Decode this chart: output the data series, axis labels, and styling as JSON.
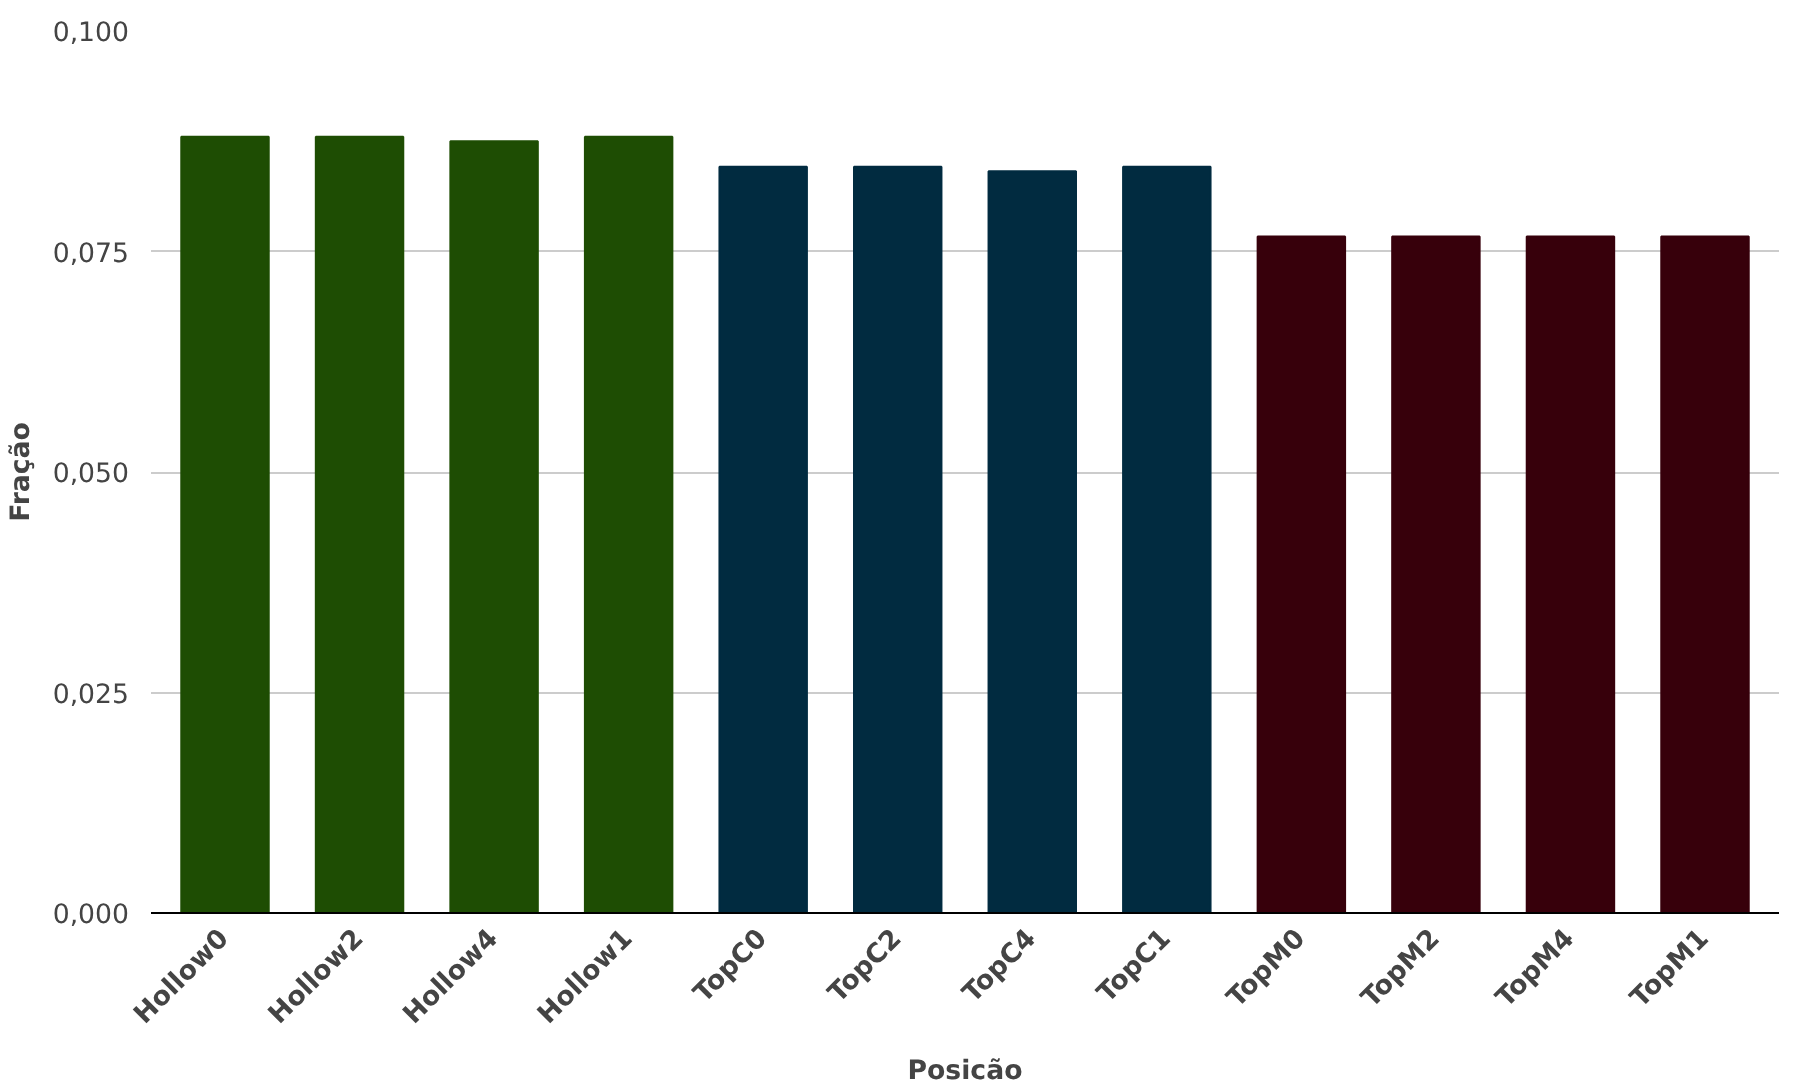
{
  "chart_data": {
    "type": "bar",
    "xlabel": "Posicão",
    "ylabel": "Fração",
    "categories": [
      "Hollow0",
      "Hollow2",
      "Hollow4",
      "Hollow1",
      "TopC0",
      "TopC2",
      "TopC4",
      "TopC1",
      "TopM0",
      "TopM2",
      "TopM4",
      "TopM1"
    ],
    "values": [
      0.088,
      0.088,
      0.0875,
      0.088,
      0.0846,
      0.0846,
      0.0841,
      0.0846,
      0.0767,
      0.0767,
      0.0767,
      0.0767
    ],
    "colors": [
      "#1e4d03",
      "#1e4d03",
      "#1e4d03",
      "#1e4d03",
      "#012b40",
      "#012b40",
      "#012b40",
      "#012b40",
      "#37000b",
      "#37000b",
      "#37000b",
      "#37000b"
    ],
    "ylim": [
      0,
      0.1
    ],
    "yticks": [
      {
        "value": 0,
        "label": "0,000"
      },
      {
        "value": 0.025,
        "label": "0,025"
      },
      {
        "value": 0.05,
        "label": "0,050"
      },
      {
        "value": 0.075,
        "label": "0,075"
      },
      {
        "value": 0.1,
        "label": "0,100"
      }
    ],
    "grid": "y"
  }
}
